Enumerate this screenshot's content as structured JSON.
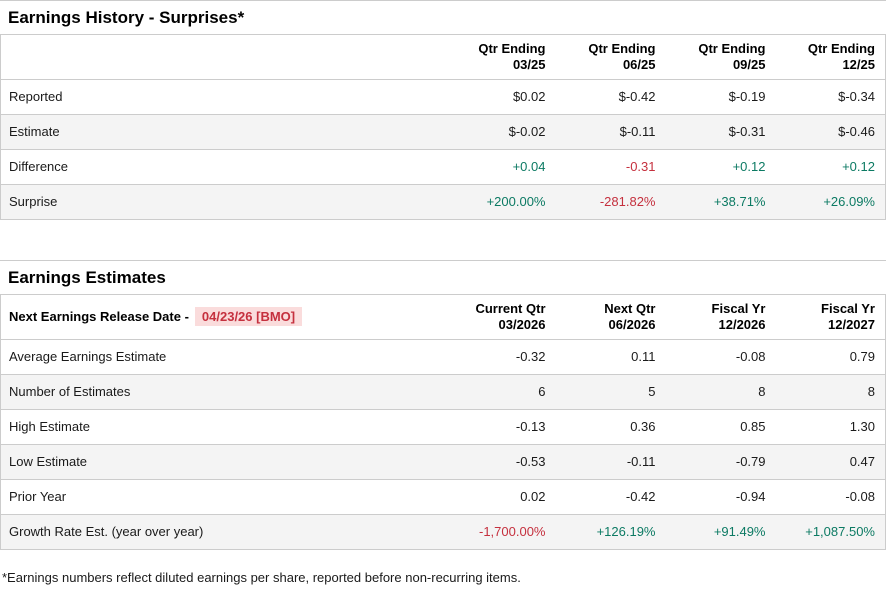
{
  "colors": {
    "positive": "#0c7a63",
    "negative": "#c5303e",
    "highlight_bg": "#fadcdc",
    "row_alt": "#f4f4f4",
    "border": "#cccccc"
  },
  "earnings_history": {
    "title": "Earnings History - Surprises*",
    "columns": [
      {
        "line1": "Qtr Ending",
        "line2": "03/25"
      },
      {
        "line1": "Qtr Ending",
        "line2": "06/25"
      },
      {
        "line1": "Qtr Ending",
        "line2": "09/25"
      },
      {
        "line1": "Qtr Ending",
        "line2": "12/25"
      }
    ],
    "rows": [
      {
        "label": "Reported",
        "values": [
          {
            "text": "$0.02",
            "tone": "neutral"
          },
          {
            "text": "$-0.42",
            "tone": "neutral"
          },
          {
            "text": "$-0.19",
            "tone": "neutral"
          },
          {
            "text": "$-0.34",
            "tone": "neutral"
          }
        ]
      },
      {
        "label": "Estimate",
        "values": [
          {
            "text": "$-0.02",
            "tone": "neutral"
          },
          {
            "text": "$-0.11",
            "tone": "neutral"
          },
          {
            "text": "$-0.31",
            "tone": "neutral"
          },
          {
            "text": "$-0.46",
            "tone": "neutral"
          }
        ]
      },
      {
        "label": "Difference",
        "values": [
          {
            "text": "+0.04",
            "tone": "positive"
          },
          {
            "text": "-0.31",
            "tone": "negative"
          },
          {
            "text": "+0.12",
            "tone": "positive"
          },
          {
            "text": "+0.12",
            "tone": "positive"
          }
        ]
      },
      {
        "label": "Surprise",
        "values": [
          {
            "text": "+200.00%",
            "tone": "positive"
          },
          {
            "text": "-281.82%",
            "tone": "negative"
          },
          {
            "text": "+38.71%",
            "tone": "positive"
          },
          {
            "text": "+26.09%",
            "tone": "positive"
          }
        ]
      }
    ]
  },
  "earnings_estimates": {
    "title": "Earnings Estimates",
    "release_label": "Next Earnings Release Date -",
    "release_date": "04/23/26 [BMO]",
    "columns": [
      {
        "line1": "Current Qtr",
        "line2": "03/2026"
      },
      {
        "line1": "Next Qtr",
        "line2": "06/2026"
      },
      {
        "line1": "Fiscal Yr",
        "line2": "12/2026"
      },
      {
        "line1": "Fiscal Yr",
        "line2": "12/2027"
      }
    ],
    "rows": [
      {
        "label": "Average Earnings Estimate",
        "values": [
          {
            "text": "-0.32",
            "tone": "neutral"
          },
          {
            "text": "0.11",
            "tone": "neutral"
          },
          {
            "text": "-0.08",
            "tone": "neutral"
          },
          {
            "text": "0.79",
            "tone": "neutral"
          }
        ]
      },
      {
        "label": "Number of Estimates",
        "values": [
          {
            "text": "6",
            "tone": "neutral"
          },
          {
            "text": "5",
            "tone": "neutral"
          },
          {
            "text": "8",
            "tone": "neutral"
          },
          {
            "text": "8",
            "tone": "neutral"
          }
        ]
      },
      {
        "label": "High Estimate",
        "values": [
          {
            "text": "-0.13",
            "tone": "neutral"
          },
          {
            "text": "0.36",
            "tone": "neutral"
          },
          {
            "text": "0.85",
            "tone": "neutral"
          },
          {
            "text": "1.30",
            "tone": "neutral"
          }
        ]
      },
      {
        "label": "Low Estimate",
        "values": [
          {
            "text": "-0.53",
            "tone": "neutral"
          },
          {
            "text": "-0.11",
            "tone": "neutral"
          },
          {
            "text": "-0.79",
            "tone": "neutral"
          },
          {
            "text": "0.47",
            "tone": "neutral"
          }
        ]
      },
      {
        "label": "Prior Year",
        "values": [
          {
            "text": "0.02",
            "tone": "neutral"
          },
          {
            "text": "-0.42",
            "tone": "neutral"
          },
          {
            "text": "-0.94",
            "tone": "neutral"
          },
          {
            "text": "-0.08",
            "tone": "neutral"
          }
        ]
      },
      {
        "label": "Growth Rate Est. (year over year)",
        "values": [
          {
            "text": "-1,700.00%",
            "tone": "negative"
          },
          {
            "text": "+126.19%",
            "tone": "positive"
          },
          {
            "text": "+91.49%",
            "tone": "positive"
          },
          {
            "text": "+1,087.50%",
            "tone": "positive"
          }
        ]
      }
    ]
  },
  "footnote": "*Earnings numbers reflect diluted earnings per share, reported before non-recurring items."
}
